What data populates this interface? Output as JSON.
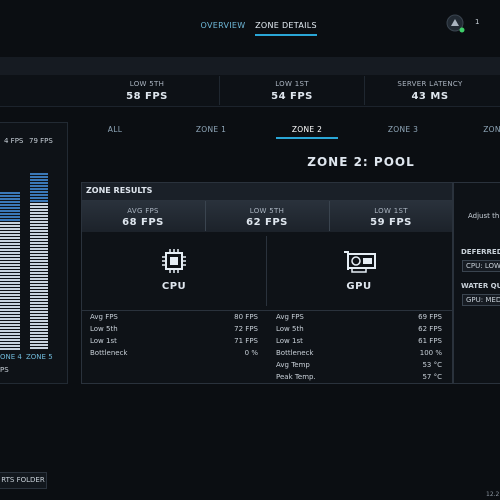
{
  "nav": {
    "tabs": [
      "OVERVIEW",
      "ZONE DETAILS"
    ],
    "badge": "1"
  },
  "summary": [
    {
      "label": "LOW 5TH",
      "value": "58 FPS"
    },
    {
      "label": "LOW 1ST",
      "value": "54 FPS"
    },
    {
      "label": "SERVER LATENCY",
      "value": "43 MS"
    }
  ],
  "side_chart": {
    "value_labels": [
      "4 FPS",
      "79 FPS"
    ],
    "categories": [
      "ONE 4",
      "ZONE 5"
    ],
    "footer": "PS"
  },
  "folder_button": "RTS FOLDER",
  "zone_tabs": [
    "ALL",
    "ZONE 1",
    "ZONE 2",
    "ZONE 3",
    "ZON"
  ],
  "zone_title": "ZONE 2: POOL",
  "results": {
    "title": "ZONE RESULTS",
    "stats": [
      {
        "label": "AVG FPS",
        "value": "68 FPS"
      },
      {
        "label": "LOW 5TH",
        "value": "62 FPS"
      },
      {
        "label": "LOW 1ST",
        "value": "59 FPS"
      }
    ],
    "cpu": {
      "name": "CPU",
      "rows": [
        [
          "Avg FPS",
          "80 FPS"
        ],
        [
          "Low 5th",
          "72 FPS"
        ],
        [
          "Low 1st",
          "71 FPS"
        ],
        [
          "Bottleneck",
          "0 %"
        ]
      ]
    },
    "gpu": {
      "name": "GPU",
      "rows": [
        [
          "Avg FPS",
          "69 FPS"
        ],
        [
          "Low 5th",
          "62 FPS"
        ],
        [
          "Low 1st",
          "61 FPS"
        ],
        [
          "Bottleneck",
          "100 %"
        ],
        [
          "Avg Temp",
          "53 °C"
        ],
        [
          "Peak Temp.",
          "57 °C"
        ]
      ]
    }
  },
  "settings": {
    "hint": "Adjust th",
    "items": [
      {
        "label": "DEFERRED",
        "value": "CPU: LOW"
      },
      {
        "label": "WATER QUA",
        "value": "GPU: MED"
      }
    ]
  },
  "version": "12.2"
}
